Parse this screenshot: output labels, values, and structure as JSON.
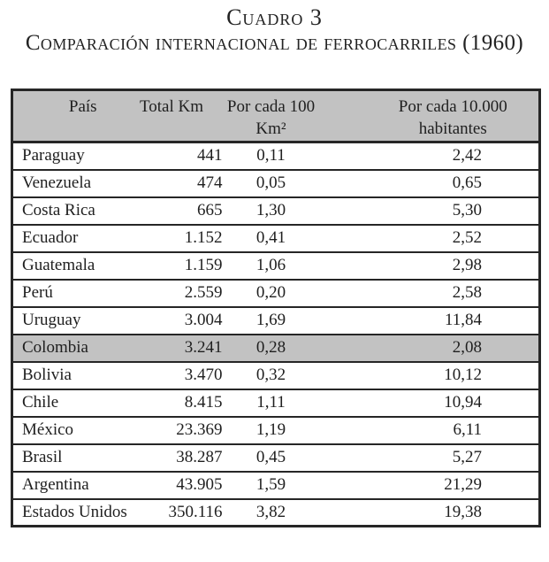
{
  "title": "Cuadro 3",
  "subtitle": "Comparación internacional de ferrocarriles (1960)",
  "table": {
    "columns": [
      {
        "line1": "País",
        "line2": ""
      },
      {
        "line1": "Total Km",
        "line2": ""
      },
      {
        "line1": "Por cada 100",
        "line2": "Km²"
      },
      {
        "line1": "Por cada 10.000",
        "line2": "habitantes"
      }
    ],
    "highlighted_row": "Colombia",
    "rows": [
      {
        "pais": "Paraguay",
        "total_km": "441",
        "por_cada_100_km2": "0,11",
        "por_cada_10000_hab": "2,42"
      },
      {
        "pais": "Venezuela",
        "total_km": "474",
        "por_cada_100_km2": "0,05",
        "por_cada_10000_hab": "0,65"
      },
      {
        "pais": "Costa Rica",
        "total_km": "665",
        "por_cada_100_km2": "1,30",
        "por_cada_10000_hab": "5,30"
      },
      {
        "pais": "Ecuador",
        "total_km": "1.152",
        "por_cada_100_km2": "0,41",
        "por_cada_10000_hab": "2,52"
      },
      {
        "pais": "Guatemala",
        "total_km": "1.159",
        "por_cada_100_km2": "1,06",
        "por_cada_10000_hab": "2,98"
      },
      {
        "pais": "Perú",
        "total_km": "2.559",
        "por_cada_100_km2": "0,20",
        "por_cada_10000_hab": "2,58"
      },
      {
        "pais": "Uruguay",
        "total_km": "3.004",
        "por_cada_100_km2": "1,69",
        "por_cada_10000_hab": "11,84"
      },
      {
        "pais": "Colombia",
        "total_km": "3.241",
        "por_cada_100_km2": "0,28",
        "por_cada_10000_hab": "2,08"
      },
      {
        "pais": "Bolivia",
        "total_km": "3.470",
        "por_cada_100_km2": "0,32",
        "por_cada_10000_hab": "10,12"
      },
      {
        "pais": "Chile",
        "total_km": "8.415",
        "por_cada_100_km2": "1,11",
        "por_cada_10000_hab": "10,94"
      },
      {
        "pais": "México",
        "total_km": "23.369",
        "por_cada_100_km2": "1,19",
        "por_cada_10000_hab": "6,11"
      },
      {
        "pais": "Brasil",
        "total_km": "38.287",
        "por_cada_100_km2": "0,45",
        "por_cada_10000_hab": "5,27"
      },
      {
        "pais": "Argentina",
        "total_km": "43.905",
        "por_cada_100_km2": "1,59",
        "por_cada_10000_hab": "21,29"
      },
      {
        "pais": "Estados Unidos",
        "total_km": "350.116",
        "por_cada_100_km2": "3,82",
        "por_cada_10000_hab": "19,38"
      }
    ]
  },
  "colors": {
    "header_bg": "#c2c2c2",
    "highlight_bg": "#c2c2c2",
    "border": "#262626",
    "text": "#1f1f1f",
    "page_bg": "#ffffff"
  }
}
